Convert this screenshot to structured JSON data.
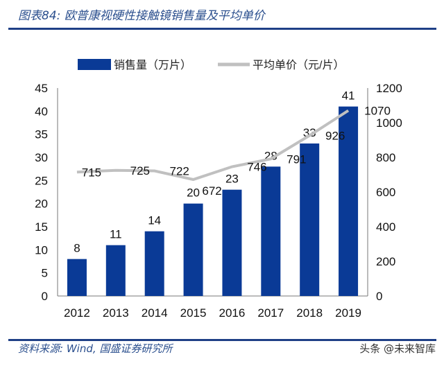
{
  "title": "图表84: 欧普康视硬性接触镜销售量及平均单价",
  "source": "资料来源: Wind, 国盛证券研究所",
  "watermark": "头条 @未来智库",
  "chart_data": {
    "type": "bar+line",
    "categories": [
      "2012",
      "2013",
      "2014",
      "2015",
      "2016",
      "2017",
      "2018",
      "2019"
    ],
    "series": [
      {
        "name": "销售量（万片）",
        "type": "bar",
        "axis": "left",
        "color": "#0a3a96",
        "values": [
          8,
          11,
          14,
          20,
          23,
          28,
          33,
          41
        ]
      },
      {
        "name": "平均单价（元/片）",
        "type": "line",
        "axis": "right",
        "color": "#c0c0c0",
        "values": [
          715,
          725,
          722,
          672,
          746,
          791,
          926,
          1070
        ]
      }
    ],
    "left_axis": {
      "ylim": [
        0,
        45
      ],
      "ticks": [
        0,
        5,
        10,
        15,
        20,
        25,
        30,
        35,
        40,
        45
      ]
    },
    "right_axis": {
      "ylim": [
        0,
        1200
      ],
      "ticks": [
        0,
        200,
        400,
        600,
        800,
        1000,
        1200
      ]
    },
    "legend": "top",
    "grid": false
  }
}
